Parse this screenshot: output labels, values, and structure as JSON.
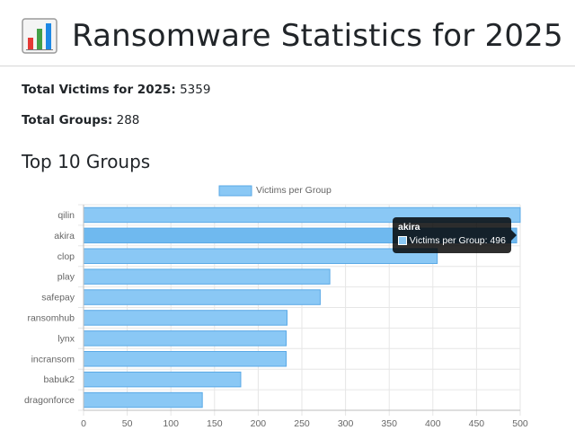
{
  "header": {
    "title": "Ransomware Statistics for 2025",
    "icon": "bar-chart-icon"
  },
  "stats": {
    "victims_label": "Total Victims for 2025:",
    "victims_value": "5359",
    "groups_label": "Total Groups:",
    "groups_value": "288"
  },
  "section": {
    "title": "Top 10 Groups"
  },
  "tooltip": {
    "title": "akira",
    "label": "Victims per Group: 496"
  },
  "colors": {
    "bar_fill": "#8ac8f5",
    "bar_border": "#5aa9e6",
    "grid": "#e6e6e6"
  },
  "chart_data": {
    "type": "bar",
    "orientation": "horizontal",
    "categories": [
      "qilin",
      "akira",
      "clop",
      "play",
      "safepay",
      "ransomhub",
      "lynx",
      "incransom",
      "babuk2",
      "dragonforce"
    ],
    "series": [
      {
        "name": "Victims per Group",
        "values": [
          500,
          496,
          405,
          282,
          271,
          233,
          232,
          232,
          180,
          136
        ]
      }
    ],
    "xlim": [
      0,
      500
    ],
    "x_ticks": [
      0,
      50,
      100,
      150,
      200,
      250,
      300,
      350,
      400,
      450,
      500
    ],
    "legend": "top-center",
    "grid": true
  }
}
